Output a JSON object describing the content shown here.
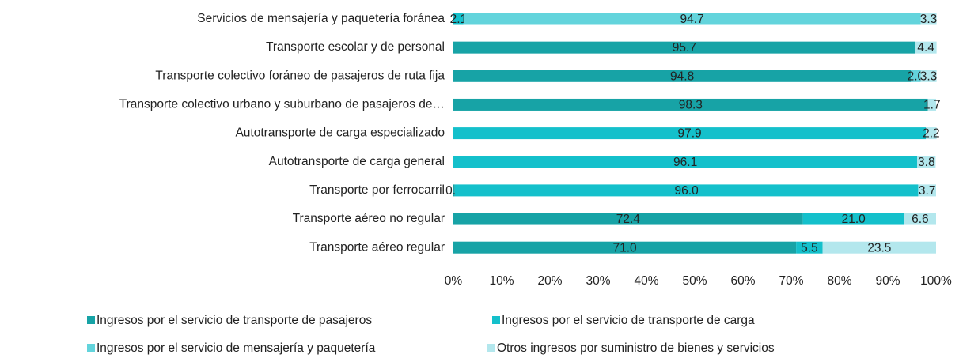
{
  "chart_data": {
    "type": "stacked_bar_horizontal",
    "categories": [
      "Servicios de mensajería y paquetería foránea",
      "Transporte escolar y de personal",
      "Transporte colectivo foráneo de pasajeros de ruta fija",
      "Transporte colectivo urbano y suburbano de pasajeros de…",
      "Autotransporte de carga especializado",
      "Autotransporte de carga general",
      "Transporte por ferrocarril",
      "Transporte aéreo no regular",
      "Transporte aéreo regular"
    ],
    "series": [
      {
        "name": "Ingresos por  el servicio de transporte de pasajeros",
        "color": "#17a3a6",
        "values": [
          null,
          95.7,
          94.8,
          98.3,
          null,
          null,
          0.3,
          72.4,
          71.0
        ],
        "value_labels": [
          null,
          "95.7",
          "94.8",
          "98.3",
          null,
          null,
          "0.3",
          "72.4",
          "71.0"
        ]
      },
      {
        "name": "Ingresos por  el servicio de transporte de carga",
        "color": "#14c0cb",
        "values": [
          2.1,
          null,
          null,
          null,
          97.9,
          96.1,
          96.0,
          21.0,
          5.5
        ],
        "value_labels": [
          "2.1",
          null,
          null,
          null,
          "97.9",
          "96.1",
          "96.0",
          "21.0",
          "5.5"
        ]
      },
      {
        "name": "Ingresos por  el servicio de mensajería y paquetería",
        "color": "#63d4dc",
        "values": [
          94.7,
          null,
          2.0,
          null,
          null,
          null,
          null,
          null,
          null
        ],
        "value_labels": [
          "94.7",
          null,
          "2.0",
          null,
          null,
          null,
          null,
          null,
          null
        ]
      },
      {
        "name": "Otros ingresos por suministro de bienes y servicios",
        "color": "#b3e7ed",
        "values": [
          3.3,
          4.4,
          3.3,
          1.7,
          2.2,
          3.8,
          3.7,
          6.6,
          23.5
        ],
        "value_labels": [
          "3.3",
          "4.4",
          "3.3",
          "1.7",
          "2.2",
          "3.8",
          "3.7",
          "6.6",
          "23.5"
        ]
      }
    ],
    "xlim": [
      0,
      100
    ],
    "xticks": [
      {
        "value": 0,
        "label": "0%"
      },
      {
        "value": 10,
        "label": "10%"
      },
      {
        "value": 20,
        "label": "20%"
      },
      {
        "value": 30,
        "label": "30%"
      },
      {
        "value": 40,
        "label": "40%"
      },
      {
        "value": 50,
        "label": "50%"
      },
      {
        "value": 60,
        "label": "60%"
      },
      {
        "value": 70,
        "label": "70%"
      },
      {
        "value": 80,
        "label": "80%"
      },
      {
        "value": 90,
        "label": "90%"
      },
      {
        "value": 100,
        "label": "100%"
      }
    ]
  }
}
